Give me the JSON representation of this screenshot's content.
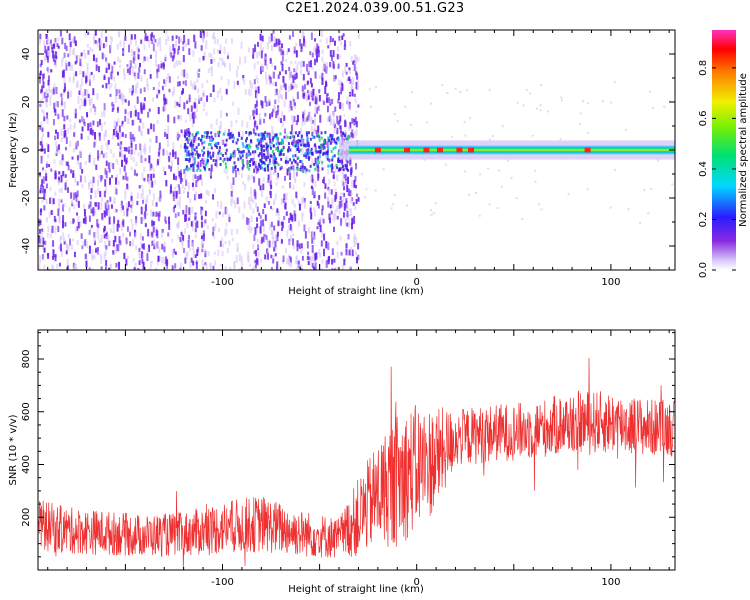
{
  "title": "C2E1.2024.039.00.51.G23",
  "colors": {
    "snr_line": "#ee3030",
    "spectrum_noise": "#6a1ee8",
    "spectrum_faint": "#d7c7f7"
  },
  "chart_data": [
    {
      "type": "heatmap",
      "xlabel": "Height of straight line (km)",
      "ylabel": "Frequency (Hz)",
      "xlim": [
        -195,
        133
      ],
      "ylim": [
        -50,
        50
      ],
      "x_ticks": [
        -100,
        0,
        100
      ],
      "x_tick_labels": [
        "-100",
        "0",
        "100"
      ],
      "y_ticks": [
        -40,
        -20,
        0,
        20,
        40
      ],
      "y_tick_labels": [
        "-40",
        "-20",
        "0",
        "20",
        "40"
      ],
      "colorbar": {
        "label": "Normalized spectral amplitude",
        "range": [
          0,
          0.95
        ],
        "ticks": [
          0.0,
          0.2,
          0.4,
          0.6,
          0.8
        ],
        "tick_labels": [
          "0.0",
          "0.2",
          "0.4",
          "0.6",
          "0.8"
        ],
        "colormap": "rainbow"
      },
      "signal_band": {
        "x_start": -40,
        "x_end": 133,
        "center_hz": 0,
        "width_hz": 6
      },
      "broadband_noise": {
        "x_start": -195,
        "x_end": -30
      }
    },
    {
      "type": "line",
      "xlabel": "Height of straight line (km)",
      "ylabel": "SNR (10 * v/v)",
      "xlim": [
        -195,
        133
      ],
      "ylim": [
        0,
        910
      ],
      "x_ticks": [
        -100,
        0,
        100
      ],
      "x_tick_labels": [
        "-100",
        "0",
        "100"
      ],
      "y_ticks": [
        200,
        400,
        600,
        800
      ],
      "y_tick_labels": [
        "200",
        "400",
        "600",
        "800"
      ],
      "series": [
        {
          "x": [
            -195,
            -180,
            -160,
            -140,
            -120,
            -100,
            -80,
            -60,
            -40,
            -30,
            -20,
            -10,
            0,
            10,
            20,
            40,
            60,
            80,
            100,
            120,
            133
          ],
          "mean": [
            170,
            150,
            140,
            130,
            135,
            160,
            175,
            140,
            120,
            200,
            290,
            340,
            390,
            420,
            500,
            520,
            530,
            560,
            560,
            540,
            540
          ],
          "half_range": [
            100,
            90,
            85,
            80,
            85,
            100,
            110,
            90,
            80,
            150,
            200,
            260,
            240,
            200,
            110,
            110,
            110,
            120,
            120,
            110,
            110
          ]
        }
      ]
    }
  ]
}
